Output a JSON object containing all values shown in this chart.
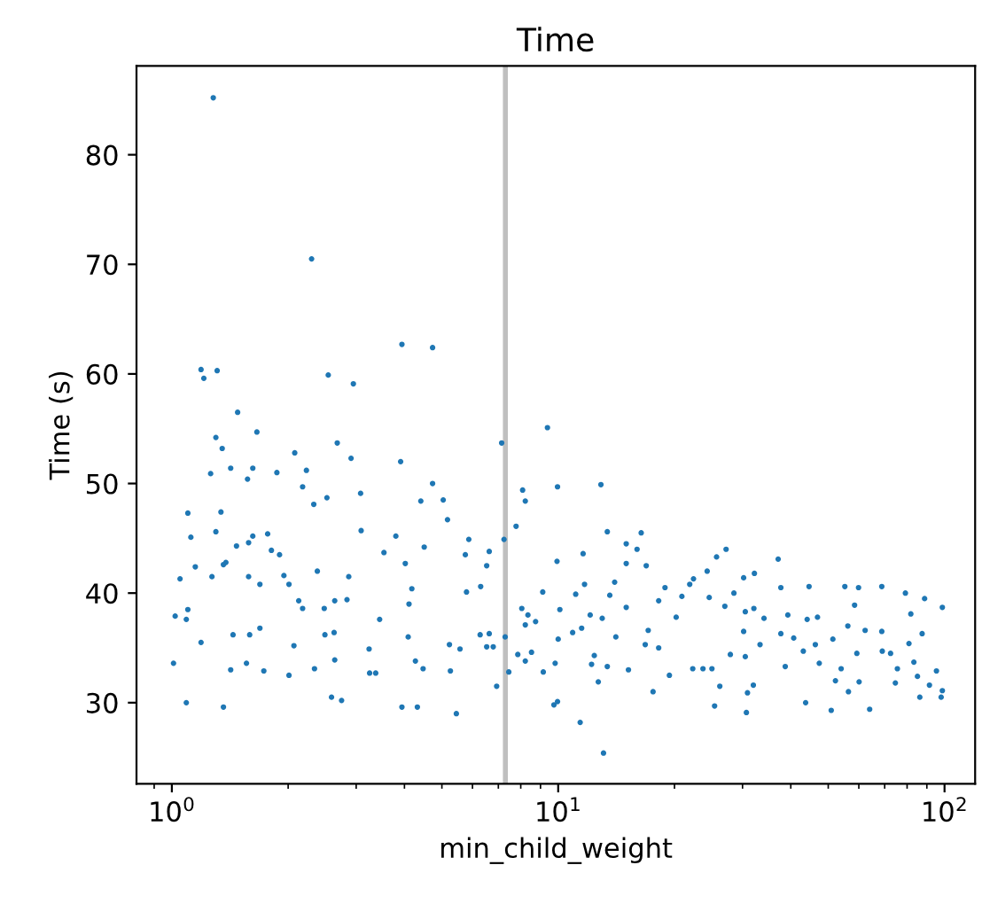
{
  "chart_data": {
    "type": "scatter",
    "title": "Time",
    "xlabel": "min_child_weight",
    "ylabel": "Time (s)",
    "log": "x",
    "xlim": [
      0.81,
      120
    ],
    "ylim": [
      22.6,
      88.1
    ],
    "xticks": [
      {
        "value": 1,
        "label": "10$^{0}$"
      },
      {
        "value": 10,
        "label": "10$^{1}$"
      },
      {
        "value": 100,
        "label": "10$^{2}$"
      }
    ],
    "yticks": [
      30,
      40,
      50,
      60,
      70,
      80
    ],
    "grid": false,
    "marker": "circle",
    "ref_lines": [
      {
        "axis": "x",
        "value": 7.3,
        "color": "#bfbfbf"
      }
    ],
    "series": [
      {
        "color": "#1f77b4",
        "x": [
          1.28,
          2.3,
          1.19,
          1.21,
          1.31,
          1.48,
          2.54,
          2.95,
          3.94,
          4.73,
          1.3,
          1.35,
          1.66,
          1.26,
          1.42,
          1.62,
          1.57,
          1.87,
          2.08,
          2.23,
          2.18,
          2.68,
          2.91,
          2.33,
          2.52,
          3.91,
          4.73,
          4.41,
          5.04,
          5.17,
          3.08,
          3.09,
          7.14,
          8.09,
          8.22,
          7.78,
          9.38,
          9.96,
          9.93,
          1.1,
          1.12,
          1.34,
          1.3,
          1.15,
          1.05,
          1.27,
          1.36,
          1.38,
          1.47,
          1.58,
          1.62,
          1.77,
          1.81,
          1.9,
          1.58,
          1.69,
          1.95,
          2.01,
          2.38,
          2.87,
          3.8,
          3.54,
          4.02,
          4.5,
          5.87,
          5.75,
          6.63,
          6.53,
          7.24,
          4.18,
          4.11,
          5.79,
          6.3,
          9.12,
          10.1,
          1.02,
          1.1,
          1.09,
          1.19,
          1.44,
          1.59,
          1.69,
          2.13,
          2.18,
          2.48,
          2.64,
          2.84,
          3.45,
          4.09,
          6.28,
          6.63,
          8.05,
          8.35,
          8.74,
          8.22,
          10.0,
          1.01,
          1.42,
          1.56,
          1.73,
          2.01,
          2.07,
          2.34,
          2.49,
          2.63,
          2.64,
          3.24,
          3.25,
          3.37,
          4.27,
          4.47,
          5.23,
          5.57,
          5.26,
          6.53,
          6.79,
          7.29,
          7.86,
          8.22,
          8.53,
          9.15,
          9.82,
          6.93,
          7.45,
          1.09,
          1.36,
          2.59,
          2.75,
          3.94,
          4.32,
          5.45,
          9.75,
          9.96,
          12.9,
          13.4,
          16.4,
          15.0,
          16.0,
          11.6,
          15.0,
          16.9,
          11.7,
          14.0,
          11.1,
          13.6,
          12.1,
          13.0,
          15.0,
          10.9,
          11.5,
          18.2,
          18.9,
          17.1,
          16.8,
          18.2,
          17.6,
          19.4,
          20.2,
          20.9,
          21.9,
          22.4,
          24.3,
          25.7,
          27.2,
          24.6,
          27.0,
          28.5,
          30.2,
          32.2,
          30.5,
          32.1,
          30.2,
          33.3,
          34.1,
          37.1,
          37.7,
          39.3,
          37.7,
          40.7,
          38.7,
          43.1,
          44.6,
          44.1,
          46.9,
          46.3,
          47.4,
          43.7,
          51.4,
          55.2,
          58.5,
          56.2,
          54.0,
          52.2,
          59.3,
          60.1,
          56.4,
          50.9,
          59.9,
          62.3,
          68.8,
          68.8,
          69.0,
          72.5,
          64.0,
          79.2,
          81.8,
          80.9,
          83.3,
          75.5,
          74.6,
          87.5,
          88.8,
          98.7,
          86.3,
          91.4,
          95.3,
          98.0,
          98.7,
          85.1,
          13.1,
          11.4,
          12.2,
          12.7,
          13.4,
          12.4,
          15.2,
          14.1,
          25.0,
          26.2,
          27.9,
          30.5,
          30.9,
          30.7,
          25.4,
          23.7,
          22.3,
          32.0
        ],
        "values": [
          85.2,
          70.5,
          60.4,
          59.6,
          60.3,
          56.5,
          59.9,
          59.1,
          62.7,
          62.4,
          54.2,
          53.2,
          54.7,
          50.9,
          51.4,
          51.4,
          50.4,
          51.0,
          52.8,
          51.2,
          49.7,
          53.7,
          52.3,
          48.1,
          48.7,
          52.0,
          50.0,
          48.4,
          48.5,
          46.7,
          49.1,
          45.7,
          53.7,
          49.4,
          48.4,
          46.1,
          55.1,
          49.7,
          42.9,
          47.3,
          45.1,
          47.4,
          45.6,
          42.4,
          41.3,
          41.5,
          42.6,
          42.8,
          44.3,
          44.6,
          45.2,
          45.4,
          43.9,
          43.5,
          41.5,
          40.8,
          41.6,
          40.8,
          42.0,
          41.5,
          45.2,
          43.7,
          42.7,
          44.2,
          44.9,
          43.5,
          43.8,
          42.5,
          44.9,
          40.4,
          39.0,
          40.1,
          40.6,
          40.1,
          38.5,
          37.9,
          38.5,
          37.6,
          35.5,
          36.2,
          36.2,
          36.8,
          39.3,
          38.6,
          38.6,
          39.3,
          39.4,
          37.6,
          36.0,
          36.2,
          36.3,
          38.6,
          38.0,
          37.4,
          37.1,
          35.8,
          33.6,
          33.0,
          33.6,
          32.9,
          32.5,
          35.2,
          33.1,
          36.2,
          36.4,
          33.9,
          34.9,
          32.7,
          32.7,
          33.8,
          33.1,
          35.3,
          34.9,
          32.9,
          35.1,
          35.1,
          36.0,
          34.4,
          33.8,
          34.6,
          32.8,
          33.6,
          31.5,
          32.8,
          30.0,
          29.6,
          30.5,
          30.2,
          29.6,
          29.6,
          29.0,
          29.8,
          30.1,
          49.9,
          45.6,
          45.5,
          44.5,
          44.0,
          43.6,
          42.7,
          42.5,
          40.8,
          41.0,
          39.9,
          39.8,
          38.0,
          37.7,
          38.7,
          36.4,
          36.8,
          39.3,
          40.5,
          36.6,
          35.3,
          35.0,
          31.0,
          32.5,
          37.8,
          39.7,
          40.8,
          41.3,
          42.0,
          43.3,
          44.0,
          39.6,
          38.8,
          40.0,
          41.4,
          41.8,
          38.3,
          38.6,
          36.5,
          35.3,
          37.7,
          43.1,
          40.5,
          38.0,
          36.3,
          35.9,
          33.3,
          34.7,
          40.6,
          37.6,
          37.8,
          35.3,
          33.6,
          30.0,
          35.8,
          40.6,
          38.9,
          37.0,
          33.1,
          32.0,
          34.5,
          31.9,
          31.0,
          29.3,
          40.5,
          36.6,
          36.5,
          40.6,
          34.7,
          34.5,
          29.4,
          40.0,
          38.1,
          35.4,
          33.7,
          33.1,
          31.8,
          36.3,
          39.5,
          38.7,
          30.5,
          31.6,
          32.9,
          30.5,
          31.1,
          32.4,
          25.4,
          28.2,
          33.5,
          31.9,
          33.3,
          34.3,
          33.0,
          36.0,
          33.1,
          31.5,
          34.4,
          34.2,
          30.9,
          29.1,
          29.7,
          33.1,
          33.1,
          31.6
        ]
      }
    ]
  }
}
